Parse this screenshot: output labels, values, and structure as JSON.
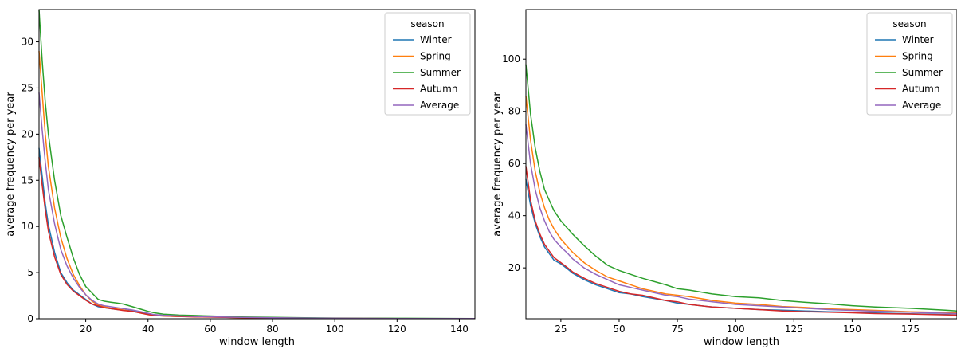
{
  "chart_data": [
    {
      "type": "line",
      "xlabel": "window length",
      "ylabel": "average frequency per year",
      "xlim": [
        5,
        145
      ],
      "ylim": [
        0,
        33.5
      ],
      "xticks": [
        20,
        40,
        60,
        80,
        100,
        120,
        140
      ],
      "yticks": [
        0,
        5,
        10,
        15,
        20,
        25,
        30
      ],
      "grid": false,
      "legend": {
        "title": "season",
        "placement": "top-right"
      },
      "x": [
        5,
        6,
        7,
        8,
        10,
        12,
        14,
        16,
        18,
        20,
        22,
        24,
        26,
        28,
        30,
        32,
        35,
        38,
        40,
        42,
        45,
        50,
        55,
        60,
        70,
        80,
        100,
        120,
        145
      ],
      "series": [
        {
          "name": "Winter",
          "color": "#1f77b4",
          "values": [
            18.5,
            15.5,
            12.5,
            10.2,
            7.2,
            5.0,
            3.9,
            3.1,
            2.6,
            2.1,
            1.6,
            1.3,
            1.2,
            1.1,
            1.0,
            0.95,
            0.85,
            0.65,
            0.5,
            0.4,
            0.35,
            0.3,
            0.25,
            0.2,
            0.15,
            0.1,
            0.05,
            0.03,
            0.02
          ]
        },
        {
          "name": "Spring",
          "color": "#ff7f0e",
          "values": [
            29.0,
            24.5,
            20.0,
            16.5,
            12.0,
            8.8,
            6.5,
            4.8,
            3.6,
            2.6,
            1.9,
            1.5,
            1.3,
            1.15,
            1.05,
            0.95,
            0.8,
            0.6,
            0.45,
            0.35,
            0.3,
            0.25,
            0.22,
            0.18,
            0.12,
            0.08,
            0.04,
            0.03,
            0.02
          ]
        },
        {
          "name": "Summer",
          "color": "#2ca02c",
          "values": [
            33.5,
            28.0,
            23.5,
            20.0,
            15.0,
            11.2,
            8.8,
            6.6,
            4.8,
            3.5,
            2.8,
            2.1,
            1.9,
            1.8,
            1.7,
            1.6,
            1.3,
            1.0,
            0.8,
            0.65,
            0.5,
            0.4,
            0.35,
            0.3,
            0.2,
            0.15,
            0.08,
            0.05,
            0.03
          ]
        },
        {
          "name": "Autumn",
          "color": "#d62728",
          "values": [
            17.5,
            14.5,
            11.8,
            9.5,
            6.7,
            4.8,
            3.7,
            3.0,
            2.5,
            2.0,
            1.6,
            1.4,
            1.2,
            1.1,
            1.0,
            0.9,
            0.8,
            0.6,
            0.45,
            0.35,
            0.3,
            0.25,
            0.2,
            0.18,
            0.12,
            0.08,
            0.04,
            0.03,
            0.02
          ]
        },
        {
          "name": "Average",
          "color": "#9467bd",
          "values": [
            24.5,
            20.5,
            17.0,
            14.0,
            10.3,
            7.5,
            5.7,
            4.4,
            3.4,
            2.6,
            2.0,
            1.6,
            1.4,
            1.3,
            1.2,
            1.1,
            0.95,
            0.75,
            0.6,
            0.45,
            0.38,
            0.3,
            0.25,
            0.22,
            0.15,
            0.1,
            0.05,
            0.03,
            0.02
          ]
        }
      ]
    },
    {
      "type": "line",
      "xlabel": "window length",
      "ylabel": "average frequency per year",
      "xlim": [
        10,
        195
      ],
      "ylim": [
        0.5,
        119
      ],
      "xticks": [
        25,
        50,
        75,
        100,
        125,
        150,
        175
      ],
      "yticks": [
        20,
        40,
        60,
        80,
        100
      ],
      "grid": false,
      "legend": {
        "title": "season",
        "placement": "top-right"
      },
      "x": [
        10,
        12,
        14,
        16,
        18,
        20,
        22,
        25,
        28,
        30,
        35,
        40,
        45,
        50,
        55,
        60,
        70,
        75,
        80,
        90,
        100,
        110,
        120,
        130,
        140,
        150,
        160,
        175,
        190,
        195
      ],
      "series": [
        {
          "name": "Winter",
          "color": "#1f77b4",
          "values": [
            54,
            44,
            37,
            32,
            28,
            25.5,
            23,
            21.5,
            19.5,
            18,
            15.5,
            13.5,
            12,
            10.5,
            10,
            9,
            7.5,
            6.5,
            6,
            5,
            4.5,
            4,
            3.8,
            3.5,
            3.2,
            3,
            2.7,
            2.4,
            2.1,
            2.0
          ]
        },
        {
          "name": "Spring",
          "color": "#ff7f0e",
          "values": [
            86,
            69,
            57,
            49,
            43,
            38.5,
            35,
            31,
            28,
            26,
            22,
            19,
            16.5,
            15,
            13.5,
            12,
            10,
            9.5,
            9,
            7.5,
            6.5,
            6,
            5.2,
            4.8,
            4.3,
            4,
            3.7,
            3.2,
            2.9,
            2.8
          ]
        },
        {
          "name": "Summer",
          "color": "#2ca02c",
          "values": [
            98,
            79,
            66,
            57,
            50,
            46,
            42,
            38,
            35,
            33,
            28.5,
            24.5,
            21,
            19,
            17.5,
            16,
            13.5,
            12,
            11.5,
            10,
            9,
            8.5,
            7.5,
            6.8,
            6.2,
            5.5,
            5,
            4.5,
            3.8,
            3.5
          ]
        },
        {
          "name": "Autumn",
          "color": "#d62728",
          "values": [
            59,
            46,
            38,
            33,
            29,
            26.5,
            24,
            22,
            20,
            18.5,
            16,
            14,
            12.5,
            11,
            10,
            9.5,
            7.5,
            7,
            6,
            5,
            4.5,
            4,
            3.5,
            3.2,
            3,
            2.8,
            2.5,
            2.3,
            2.0,
            1.9
          ]
        },
        {
          "name": "Average",
          "color": "#9467bd",
          "values": [
            75,
            60,
            50,
            43,
            38,
            34,
            31,
            28,
            25.5,
            23.5,
            20,
            17.5,
            15.5,
            13.5,
            12.5,
            11.5,
            9.5,
            9,
            8,
            7,
            6,
            5.5,
            5,
            4.5,
            4,
            3.7,
            3.4,
            3,
            2.6,
            2.5
          ]
        }
      ]
    }
  ]
}
